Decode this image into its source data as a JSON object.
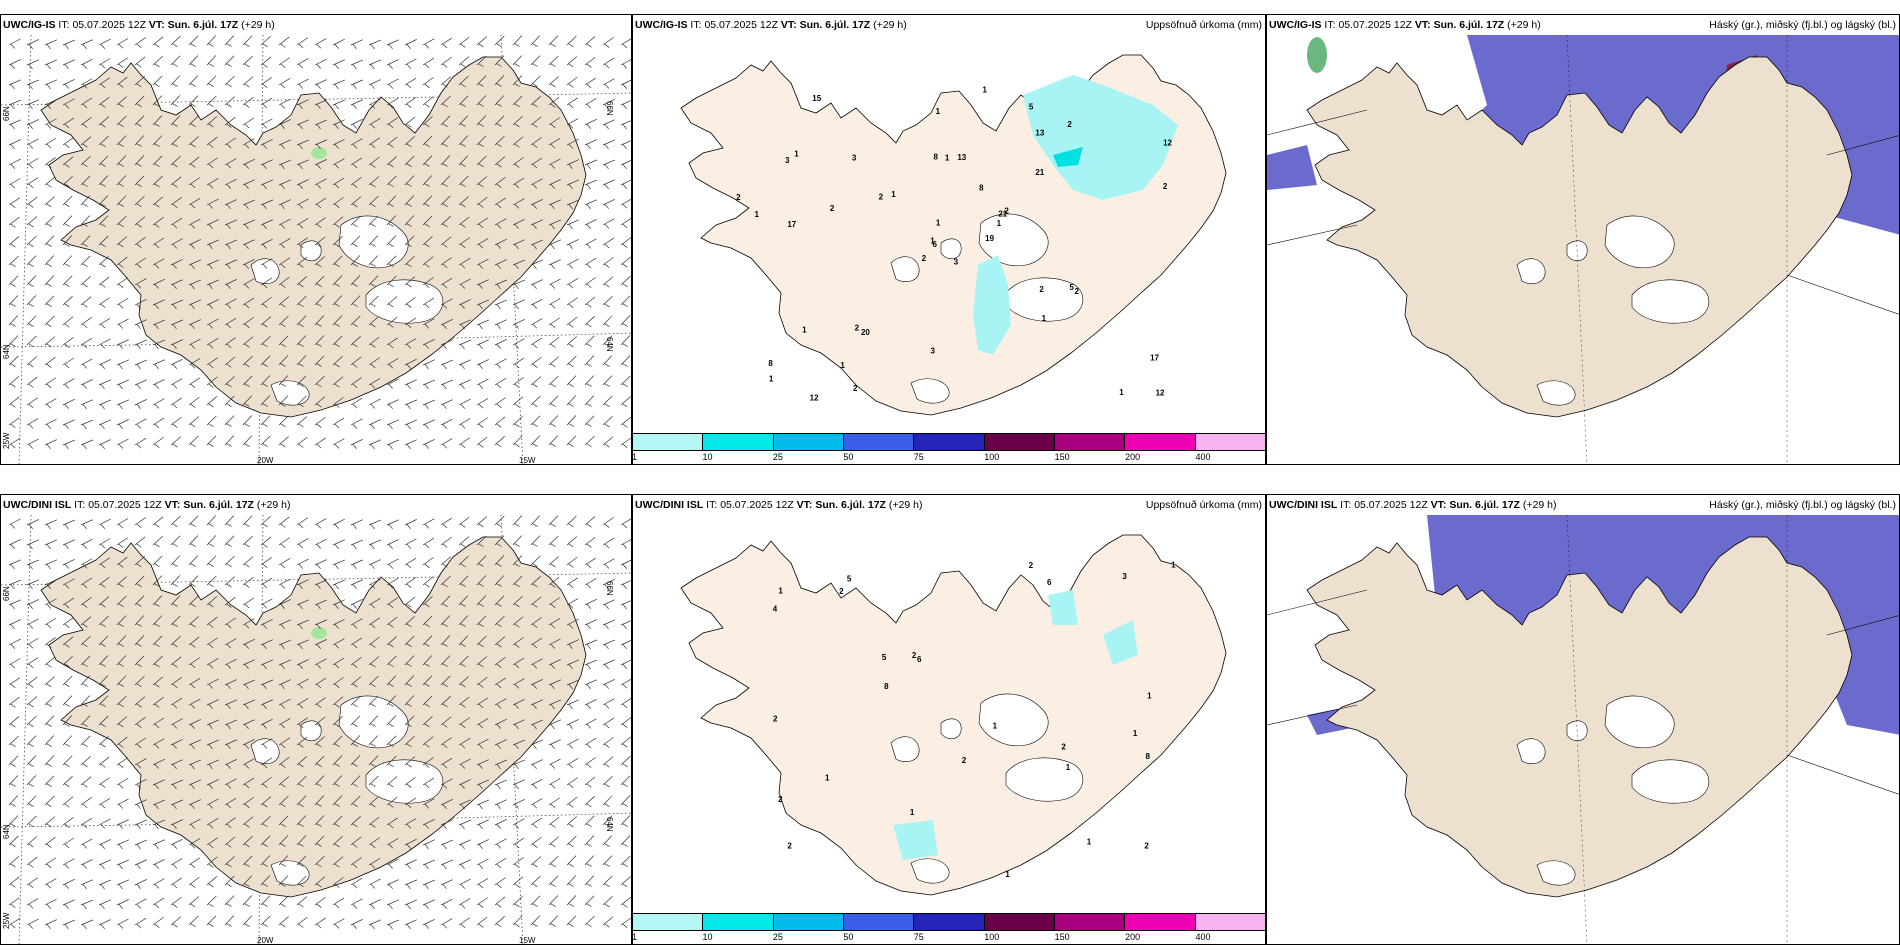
{
  "colors": {
    "land": "#ede0cf",
    "land_precip": "#fbefe3",
    "cloud_low": "#5b5bc9",
    "cloud_low_edge": "#4a8fe0",
    "cloud_high": "#8b1030",
    "precip_light": "#a8f4f4",
    "wind_green": "#8fe88f"
  },
  "panels": [
    {
      "id": "wind-top",
      "model": "UWC/IG-IS",
      "it_label": "IT:",
      "it_value": "05.07.2025 12Z",
      "vt_label": "VT:",
      "vt_value": "Sun. 6.júl. 17Z",
      "lead": "(+29 h)",
      "subtitle": "",
      "grid_labels": [
        "66N",
        "66N",
        "64N",
        "64N",
        "25W",
        "20W",
        "15W"
      ]
    },
    {
      "id": "precip-top",
      "model": "UWC/IG-IS",
      "it_label": "IT:",
      "it_value": "05.07.2025 12Z",
      "vt_label": "VT:",
      "vt_value": "Sun. 6.júl. 17Z",
      "lead": "(+29 h)",
      "subtitle": "Uppsöfnuð úrkoma (mm)",
      "precip_labels": [
        "3",
        "3",
        "6",
        "8",
        "21",
        "20",
        "5",
        "13",
        "13",
        "19",
        "15",
        "12",
        "17",
        "12",
        "2",
        "21",
        "12",
        "8",
        "8",
        "1",
        "1",
        "1",
        "1",
        "1",
        "2",
        "2",
        "1",
        "1",
        "1",
        "2",
        "2",
        "1",
        "3",
        "1",
        "3",
        "2",
        "2",
        "1",
        "17",
        "5",
        "1",
        "2",
        "2",
        "1",
        "2",
        "2",
        "1"
      ]
    },
    {
      "id": "cloud-top",
      "model": "UWC/IG-IS",
      "it_label": "IT:",
      "it_value": "05.07.2025 12Z",
      "vt_label": "VT:",
      "vt_value": "Sun. 6.júl. 17Z",
      "lead": "(+29 h)",
      "subtitle": "Háský (gr.), miðský (fj.bl.) og lágský (bl.)"
    },
    {
      "id": "wind-bottom",
      "model": "UWC/DINI ISL",
      "it_label": "IT:",
      "it_value": "05.07.2025 12Z",
      "vt_label": "VT:",
      "vt_value": "Sun. 6.júl. 17Z",
      "lead": "(+29 h)",
      "subtitle": "",
      "grid_labels": [
        "66N",
        "66N",
        "64N",
        "64N",
        "25W",
        "20W",
        "15W"
      ]
    },
    {
      "id": "precip-bottom",
      "model": "UWC/DINI ISL",
      "it_label": "IT:",
      "it_value": "05.07.2025 12Z",
      "vt_label": "VT:",
      "vt_value": "Sun. 6.júl. 17Z",
      "lead": "(+29 h)",
      "subtitle": "Uppsöfnuð úrkoma (mm)",
      "precip_labels": [
        "2",
        "1",
        "2",
        "5",
        "6",
        "1",
        "2",
        "6",
        "5",
        "1",
        "4",
        "2",
        "1",
        "2",
        "1",
        "1",
        "2",
        "1",
        "2",
        "1",
        "1",
        "3",
        "8",
        "8",
        "2",
        "2",
        "1"
      ]
    },
    {
      "id": "cloud-bottom",
      "model": "UWC/DINI ISL",
      "it_label": "IT:",
      "it_value": "05.07.2025 12Z",
      "vt_label": "VT:",
      "vt_value": "Sun. 6.júl. 17Z",
      "lead": "(+29 h)",
      "subtitle": "Háský (gr.), miðský (fj.bl.) og lágský (bl.)"
    }
  ],
  "colorbar": {
    "segments": [
      "#b4f6f6",
      "#00e8e8",
      "#00bce8",
      "#3a5ee8",
      "#2424b8",
      "#6a0048",
      "#a8007e",
      "#f000b4",
      "#f6b4f2"
    ],
    "labels": [
      "1",
      "10",
      "25",
      "50",
      "75",
      "100",
      "150",
      "200",
      "400"
    ]
  }
}
